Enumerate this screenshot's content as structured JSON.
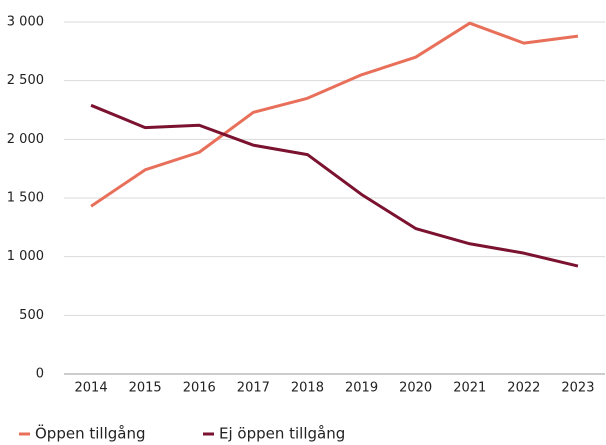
{
  "chart_data": {
    "type": "line",
    "categories": [
      "2014",
      "2015",
      "2016",
      "2017",
      "2018",
      "2019",
      "2020",
      "2021",
      "2022",
      "2023"
    ],
    "series": [
      {
        "name": "Öppen tillgång",
        "color": "#e8705a",
        "values": [
          1430,
          1740,
          1890,
          2230,
          2350,
          2550,
          2700,
          2990,
          2820,
          2880
        ]
      },
      {
        "name": "Ej öppen tillgång",
        "color": "#7a1230",
        "values": [
          2290,
          2100,
          2120,
          1950,
          1870,
          1530,
          1240,
          1110,
          1030,
          920
        ]
      }
    ],
    "ylim": [
      0,
      3000
    ],
    "yticks": [
      0,
      500,
      {
        "value": 1000,
        "label": "1 000"
      },
      {
        "value": 1500,
        "label": "1 500"
      },
      {
        "value": 2000,
        "label": "2 000"
      },
      {
        "value": 2500,
        "label": "2 500"
      },
      {
        "value": 3000,
        "label": "3 000"
      }
    ],
    "grid": true,
    "legend": "bottom"
  }
}
